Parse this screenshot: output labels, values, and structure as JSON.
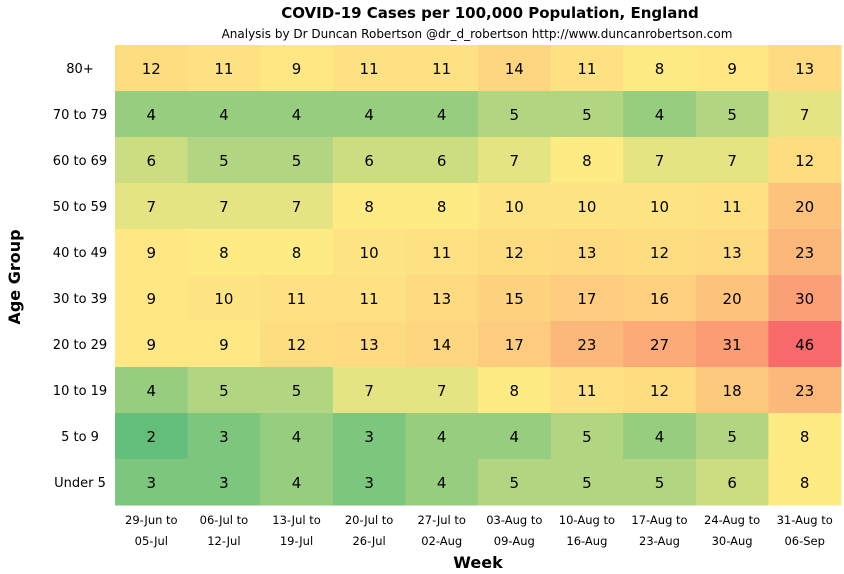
{
  "chart_data": {
    "type": "heatmap",
    "title": "COVID-19 Cases per 100,000 Population, England",
    "subtitle": "Analysis by Dr Duncan Robertson @dr_d_robertson http://www.duncanrobertson.com",
    "xlabel": "Week",
    "ylabel": "Age Group",
    "columns": [
      [
        "29-Jun to",
        "05-Jul"
      ],
      [
        "06-Jul to",
        "12-Jul"
      ],
      [
        "13-Jul to",
        "19-Jul"
      ],
      [
        "20-Jul to",
        "26-Jul"
      ],
      [
        "27-Jul to",
        "02-Aug"
      ],
      [
        "03-Aug to",
        "09-Aug"
      ],
      [
        "10-Aug to",
        "16-Aug"
      ],
      [
        "17-Aug to",
        "23-Aug"
      ],
      [
        "24-Aug to",
        "30-Aug"
      ],
      [
        "31-Aug to",
        "06-Sep"
      ]
    ],
    "rows": [
      "80+",
      "70 to 79",
      "60 to 69",
      "50 to 59",
      "40 to 49",
      "30 to 39",
      "20 to 29",
      "10 to 19",
      "5 to 9",
      "Under 5"
    ],
    "values": [
      [
        12,
        11,
        9,
        11,
        11,
        14,
        11,
        8,
        9,
        13
      ],
      [
        4,
        4,
        4,
        4,
        4,
        5,
        5,
        4,
        5,
        7
      ],
      [
        6,
        5,
        5,
        6,
        6,
        7,
        8,
        7,
        7,
        12
      ],
      [
        7,
        7,
        7,
        8,
        8,
        10,
        10,
        10,
        11,
        20
      ],
      [
        9,
        8,
        8,
        10,
        11,
        12,
        13,
        12,
        13,
        23
      ],
      [
        9,
        10,
        11,
        11,
        13,
        15,
        17,
        16,
        20,
        30
      ],
      [
        9,
        9,
        12,
        13,
        14,
        17,
        23,
        27,
        31,
        46
      ],
      [
        4,
        5,
        5,
        7,
        7,
        8,
        11,
        12,
        18,
        23
      ],
      [
        2,
        3,
        4,
        3,
        4,
        4,
        5,
        4,
        5,
        8
      ],
      [
        3,
        3,
        4,
        3,
        4,
        5,
        5,
        5,
        6,
        8
      ]
    ],
    "colorscale": [
      "#63be7b",
      "#ffeb84",
      "#f8696b"
    ],
    "grid": false,
    "legend": "none"
  }
}
